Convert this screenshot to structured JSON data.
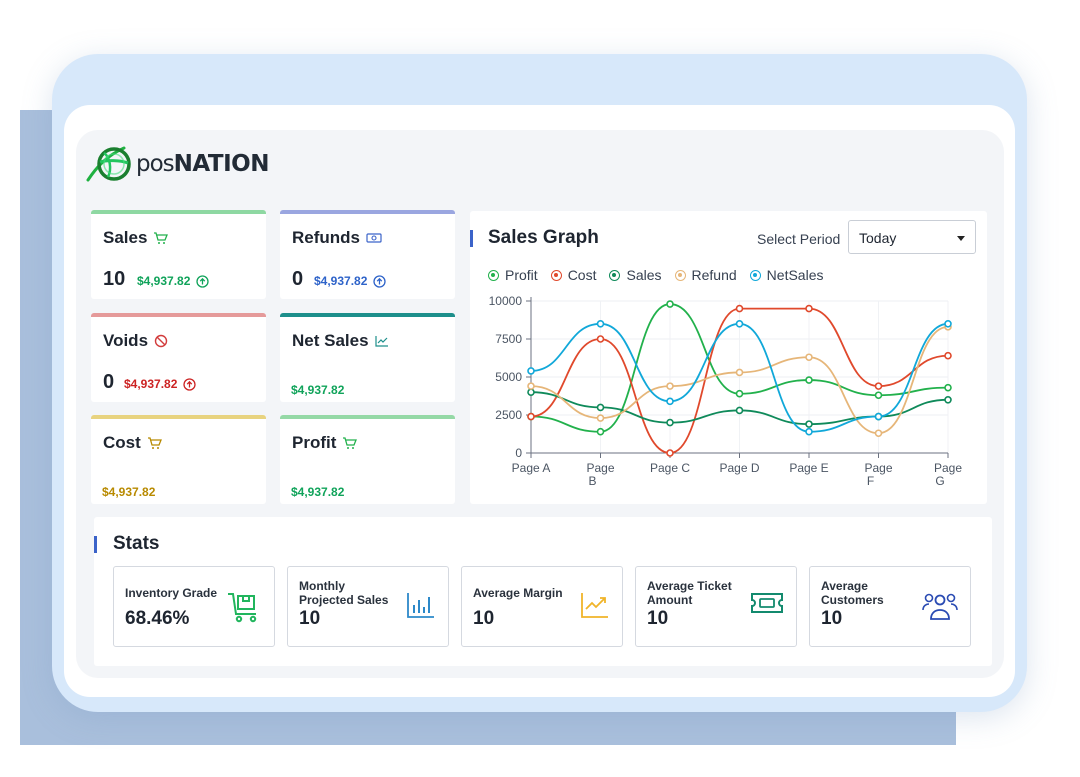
{
  "brand": {
    "name_part1": "pos",
    "name_part2": "NATION"
  },
  "cards": [
    {
      "title": "Sales",
      "count": "10",
      "amount": "$4,937.82",
      "icon": "cart-icon",
      "accent": "#8ed8a2",
      "amount_color": "#10a35a"
    },
    {
      "title": "Refunds",
      "count": "0",
      "amount": "$4,937.82",
      "icon": "cash-icon",
      "accent": "#9aa6e0",
      "amount_color": "#2e63c9"
    },
    {
      "title": "Voids",
      "count": "0",
      "amount": "$4,937.82",
      "icon": "ban-icon",
      "accent": "#e59a9a",
      "amount_color": "#cc2323"
    },
    {
      "title": "Net Sales",
      "amount": "$4,937.82",
      "icon": "trend-icon",
      "accent": "#1d8f8b",
      "amount_color": "#10a35a"
    },
    {
      "title": "Cost",
      "amount": "$4,937.82",
      "icon": "cart-icon",
      "accent": "#e8d37f",
      "amount_color": "#b88a00"
    },
    {
      "title": "Profit",
      "amount": "$4,937.82",
      "icon": "cart-icon",
      "accent": "#95d9a6",
      "amount_color": "#10a35a"
    }
  ],
  "graph": {
    "title": "Sales Graph",
    "period_label": "Select Period",
    "period_value": "Today"
  },
  "chart_data": {
    "type": "line",
    "categories": [
      "Page A",
      "Page B",
      "Page C",
      "Page D",
      "Page E",
      "Page F",
      "Page G"
    ],
    "ylim": [
      0,
      10000
    ],
    "yticks": [
      0,
      2500,
      5000,
      7500,
      10000
    ],
    "grid": true,
    "legend_position": "top-left",
    "series": [
      {
        "name": "Profit",
        "color": "#22b14c",
        "values": [
          2400,
          1400,
          9800,
          3900,
          4800,
          3800,
          4300
        ]
      },
      {
        "name": "Cost",
        "color": "#e0492c",
        "values": [
          2400,
          7500,
          0,
          9500,
          9500,
          4400,
          6400
        ]
      },
      {
        "name": "Sales",
        "color": "#0f8a5a",
        "values": [
          4000,
          3000,
          2000,
          2800,
          1900,
          2400,
          3500
        ]
      },
      {
        "name": "Refund",
        "color": "#e6b679",
        "values": [
          4400,
          2300,
          4400,
          5300,
          6300,
          1300,
          8300
        ]
      },
      {
        "name": "NetSales",
        "color": "#11a8d9",
        "values": [
          5400,
          8500,
          3400,
          8500,
          1400,
          2400,
          8500
        ]
      }
    ]
  },
  "stats": {
    "title": "Stats",
    "items": [
      {
        "label": "Inventory Grade",
        "value": "68.46%",
        "icon": "inventory-cart-icon",
        "color": "#21b55d"
      },
      {
        "label": "Monthly Projected Sales",
        "value": "10",
        "icon": "bar-chart-icon",
        "color": "#2d89c9"
      },
      {
        "label": "Average Margin",
        "value": "10",
        "icon": "line-chart-icon",
        "color": "#f0b429"
      },
      {
        "label": "Average Ticket Amount",
        "value": "10",
        "icon": "ticket-icon",
        "color": "#138a6e"
      },
      {
        "label": "Average Customers",
        "value": "10",
        "icon": "users-icon",
        "color": "#2a4bb3"
      }
    ]
  }
}
